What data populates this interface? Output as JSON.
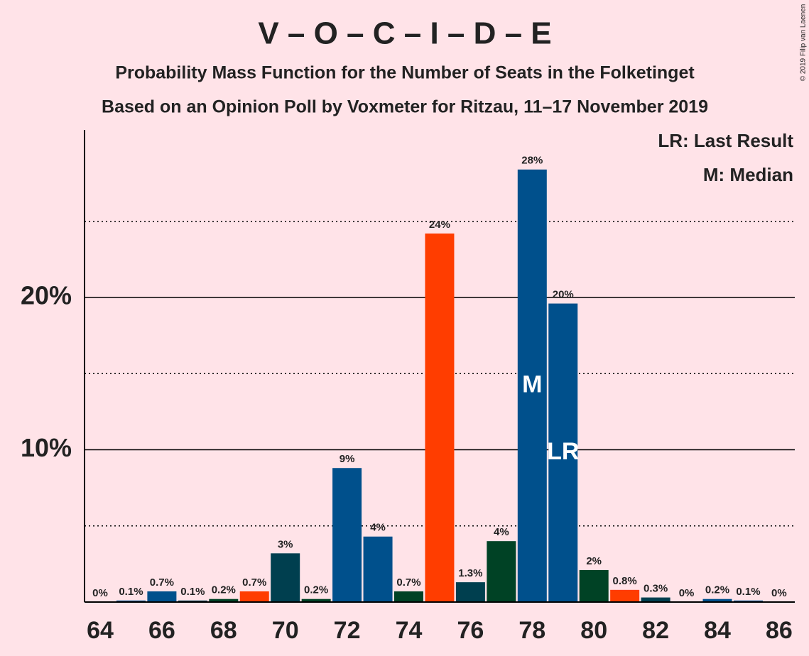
{
  "chart_data": {
    "type": "bar",
    "title": "V – O – C – I – D – E",
    "subtitle": "Probability Mass Function for the Number of Seats in the Folketinget",
    "subtitle2": "Based on an Opinion Poll by Voxmeter for Ritzau, 11–17 November 2019",
    "copyright": "© 2019 Filip van Laenen",
    "categories": [
      64,
      null,
      66,
      null,
      68,
      null,
      70,
      null,
      72,
      null,
      74,
      null,
      76,
      null,
      78,
      null,
      80,
      null,
      82,
      null,
      84,
      null,
      86
    ],
    "values": [
      0,
      0.1,
      0.7,
      0.1,
      0.2,
      0.7,
      3.2,
      0.2,
      8.8,
      4.3,
      0.7,
      24.2,
      1.3,
      4.0,
      28.4,
      19.6,
      2.1,
      0.8,
      0.3,
      0,
      0.2,
      0.1,
      0
    ],
    "value_labels": [
      "0%",
      "0.1%",
      "0.7%",
      "0.1%",
      "0.2%",
      "0.7%",
      "3%",
      "0.2%",
      "9%",
      "4%",
      "0.7%",
      "24%",
      "1.3%",
      "4%",
      "28%",
      "20%",
      "2%",
      "0.8%",
      "0.3%",
      "0%",
      "0.2%",
      "0.1%",
      "0%"
    ],
    "colors": [
      "#004225",
      "#00508c",
      "#00508c",
      "#003f4f",
      "#004225",
      "#ff3d00",
      "#003f4f",
      "#004225",
      "#00508c",
      "#00508c",
      "#004225",
      "#ff3d00",
      "#003f4f",
      "#004225",
      "#00508c",
      "#00508c",
      "#004225",
      "#ff3d00",
      "#003f4f",
      "#004225",
      "#00508c",
      "#00508c",
      "#004225"
    ],
    "ylim": [
      0,
      31
    ],
    "yticks": [
      {
        "value": 10,
        "label": "10%"
      },
      {
        "value": 20,
        "label": "20%"
      }
    ],
    "minor_grid": [
      5,
      15,
      25
    ],
    "median": {
      "value": 78,
      "label": "M"
    },
    "last_result": {
      "value": 79,
      "label": "LR"
    },
    "legend": [
      "LR: Last Result",
      "M: Median"
    ]
  }
}
